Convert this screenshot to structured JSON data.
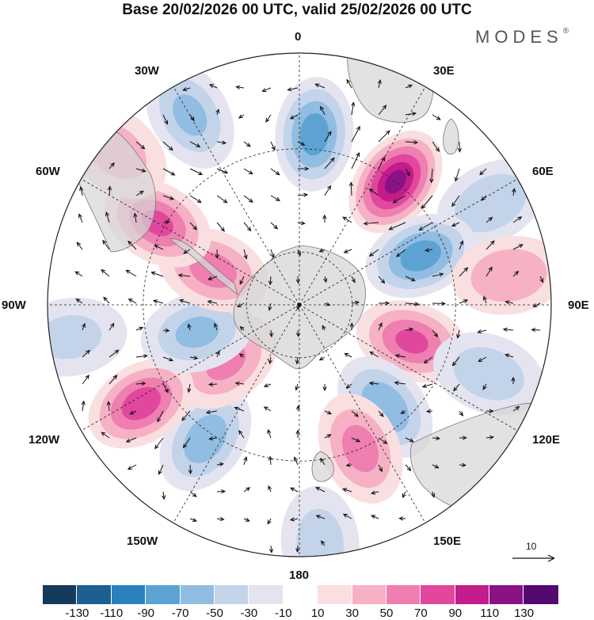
{
  "title": "Base 20/02/2026 00 UTC, valid 25/02/2026 00 UTC",
  "brand": {
    "name": "MODES",
    "mark": "®"
  },
  "longitude_labels": {
    "lon_0": "0",
    "lon_30e": "30E",
    "lon_60e": "60E",
    "lon_90e": "90E",
    "lon_120e": "120E",
    "lon_150e": "150E",
    "lon_180": "180",
    "lon_150w": "150W",
    "lon_120w": "120W",
    "lon_90w": "90W",
    "lon_60w": "60W",
    "lon_30w": "30W"
  },
  "reference_vector": {
    "value": "10"
  },
  "legend": {
    "colors": [
      "#163a5c",
      "#1d5f91",
      "#2b81bd",
      "#5ca3d3",
      "#90bde1",
      "#c3d3ea",
      "#e4e4f0",
      "#ffffff",
      "#fadfe0",
      "#f6b1c5",
      "#ee7fb0",
      "#e2479e",
      "#c31c8b",
      "#8a1285",
      "#54096e"
    ],
    "ticks": [
      "-130",
      "-110",
      "-90",
      "-70",
      "-50",
      "-30",
      "-10",
      "10",
      "30",
      "50",
      "70",
      "90",
      "110",
      "130"
    ]
  },
  "anomaly_centers": [
    {
      "lon": 5,
      "dist": 0.68,
      "value": -80
    },
    {
      "lon": 38,
      "dist": 0.62,
      "value": 115
    },
    {
      "lon": 62,
      "dist": 0.86,
      "value": -45
    },
    {
      "lon": 68,
      "dist": 0.52,
      "value": -80
    },
    {
      "lon": 82,
      "dist": 0.84,
      "value": 45
    },
    {
      "lon": 108,
      "dist": 0.47,
      "value": 70
    },
    {
      "lon": 110,
      "dist": 0.8,
      "value": -40
    },
    {
      "lon": 140,
      "dist": 0.53,
      "value": -65
    },
    {
      "lon": 157,
      "dist": 0.62,
      "value": 55
    },
    {
      "lon": 175,
      "dist": 0.95,
      "value": -35
    },
    {
      "lon": 215,
      "dist": 0.65,
      "value": -60
    },
    {
      "lon": 232,
      "dist": 0.37,
      "value": 50
    },
    {
      "lon": 238,
      "dist": 0.74,
      "value": 80
    },
    {
      "lon": 255,
      "dist": 0.42,
      "value": -50
    },
    {
      "lon": 292,
      "dist": 0.37,
      "value": 55
    },
    {
      "lon": 300,
      "dist": 0.65,
      "value": 70
    },
    {
      "lon": 310,
      "dist": 0.95,
      "value": 35
    },
    {
      "lon": 330,
      "dist": 0.87,
      "value": -50
    },
    {
      "lon": 262,
      "dist": 0.92,
      "value": -30
    }
  ]
}
